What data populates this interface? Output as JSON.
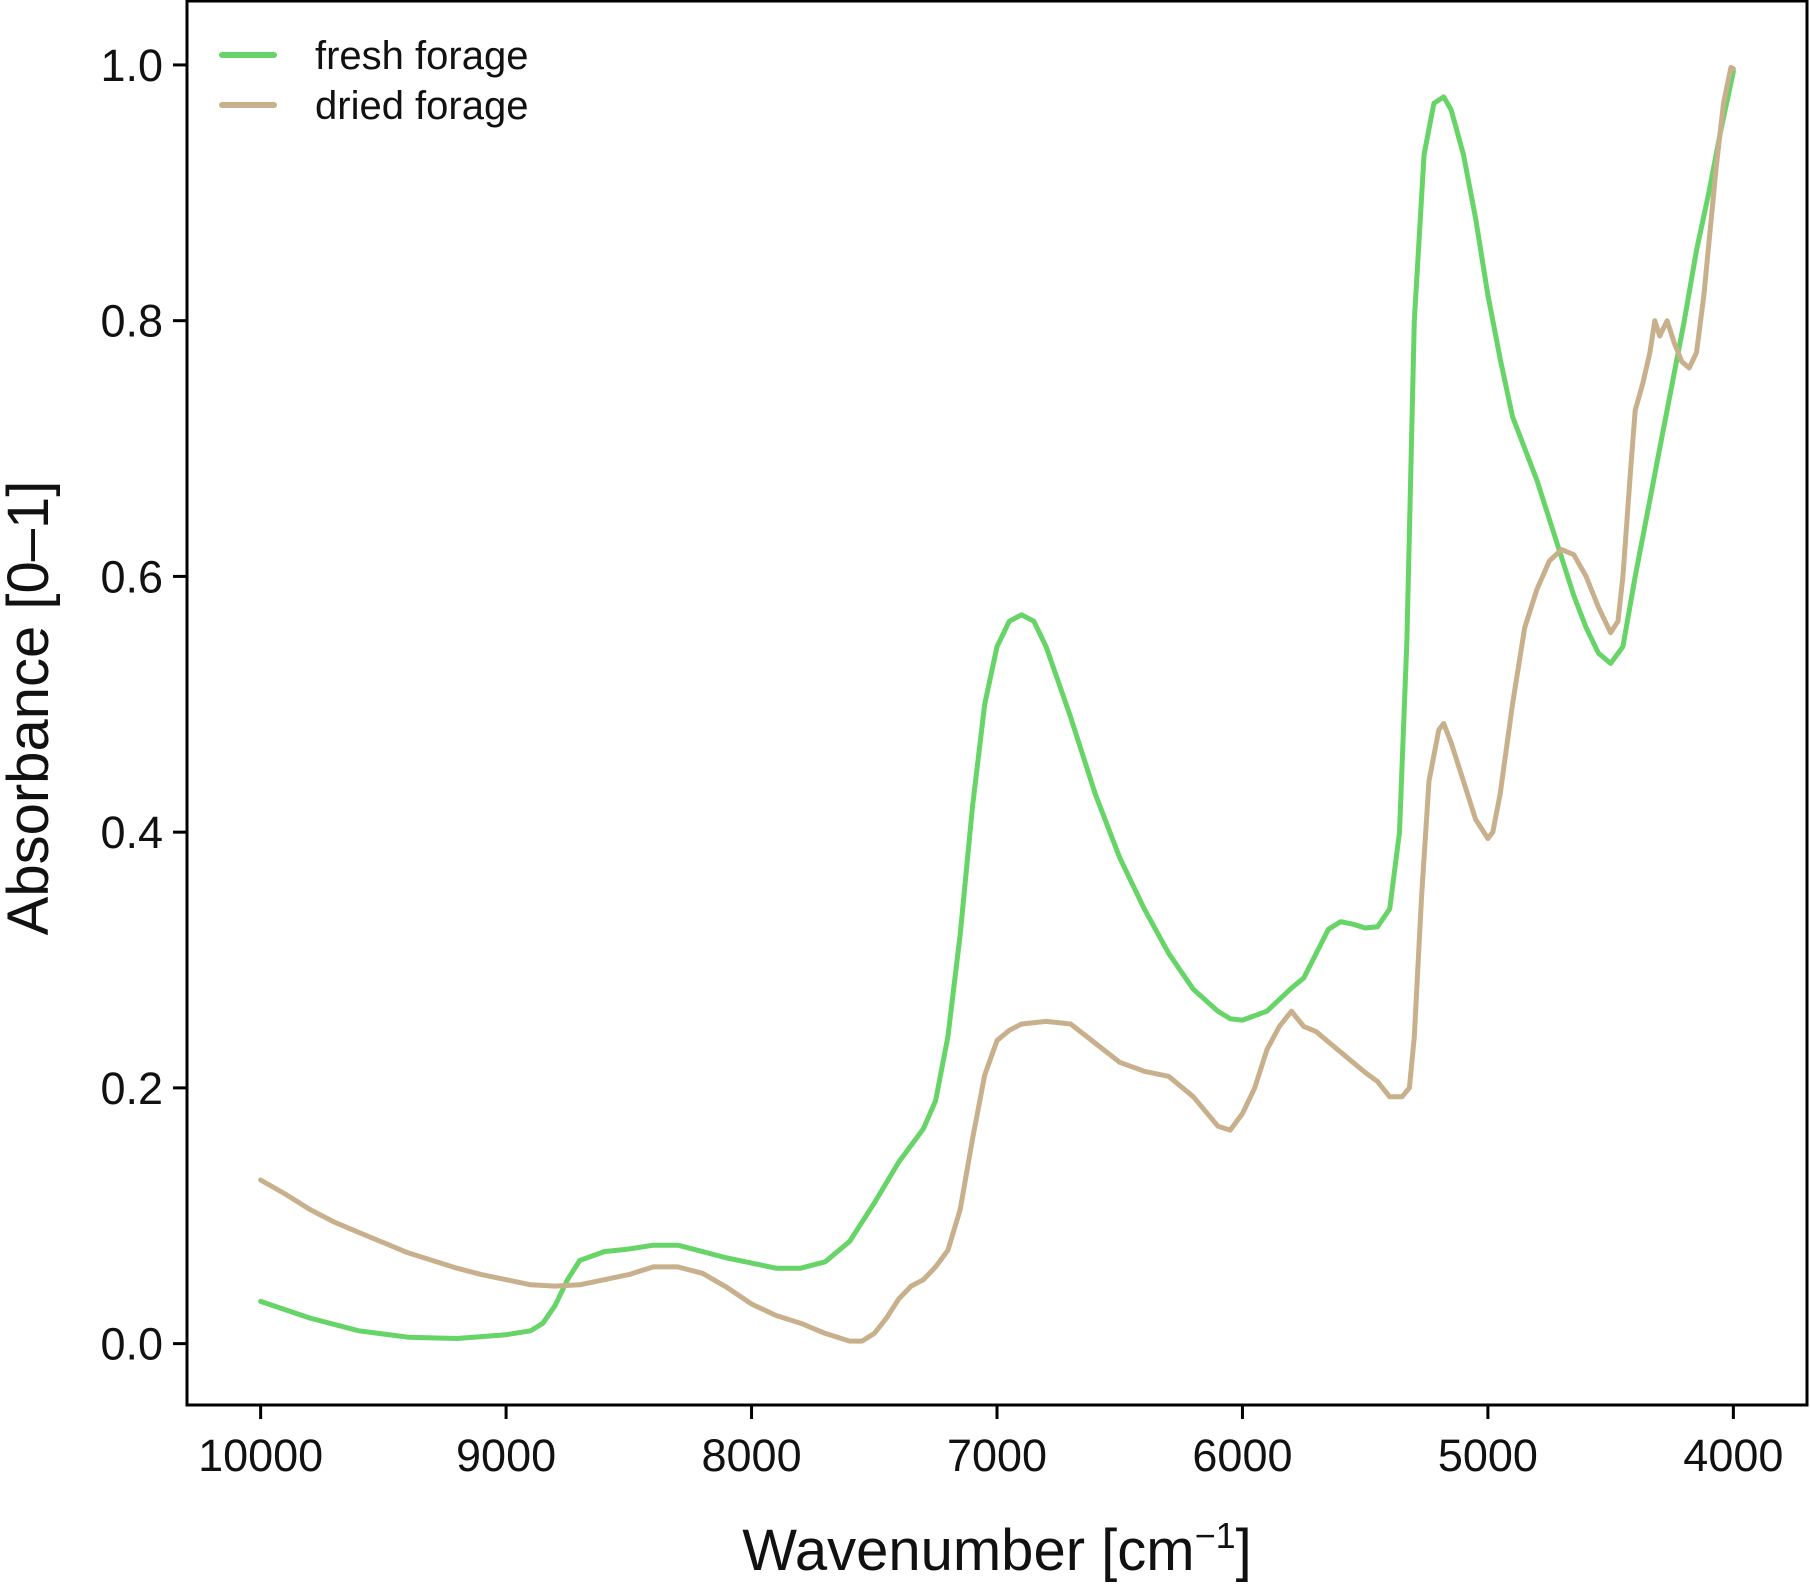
{
  "chart_data": {
    "type": "line",
    "title": "",
    "xlabel": "Wavenumber [cm",
    "xlabel_sup": "−1",
    "xlabel_close": "]",
    "ylabel": "Absorbance [0–1]",
    "xlim": [
      10300,
      3700
    ],
    "x_reversed": true,
    "ylim": [
      -0.048,
      1.05
    ],
    "xticks": [
      10000,
      9000,
      8000,
      7000,
      6000,
      5000,
      4000
    ],
    "xtick_labels": [
      "10000",
      "9000",
      "8000",
      "7000",
      "6000",
      "5000",
      "4000"
    ],
    "yticks": [
      0.0,
      0.2,
      0.4,
      0.6,
      0.8,
      1.0
    ],
    "ytick_labels": [
      "0.0",
      "0.2",
      "0.4",
      "0.6",
      "0.8",
      "1.0"
    ],
    "grid": false,
    "legend_position": "top-left",
    "series": [
      {
        "name": "fresh forage",
        "color": "#66d466",
        "points": [
          [
            10000,
            0.033
          ],
          [
            9800,
            0.02
          ],
          [
            9600,
            0.01
          ],
          [
            9400,
            0.005
          ],
          [
            9200,
            0.004
          ],
          [
            9000,
            0.007
          ],
          [
            8900,
            0.01
          ],
          [
            8850,
            0.016
          ],
          [
            8800,
            0.03
          ],
          [
            8750,
            0.05
          ],
          [
            8700,
            0.065
          ],
          [
            8600,
            0.072
          ],
          [
            8500,
            0.074
          ],
          [
            8400,
            0.077
          ],
          [
            8300,
            0.077
          ],
          [
            8200,
            0.072
          ],
          [
            8100,
            0.067
          ],
          [
            8000,
            0.063
          ],
          [
            7900,
            0.059
          ],
          [
            7800,
            0.059
          ],
          [
            7700,
            0.064
          ],
          [
            7600,
            0.08
          ],
          [
            7500,
            0.11
          ],
          [
            7400,
            0.142
          ],
          [
            7300,
            0.168
          ],
          [
            7250,
            0.19
          ],
          [
            7200,
            0.24
          ],
          [
            7150,
            0.32
          ],
          [
            7100,
            0.42
          ],
          [
            7050,
            0.5
          ],
          [
            7000,
            0.545
          ],
          [
            6950,
            0.565
          ],
          [
            6900,
            0.57
          ],
          [
            6850,
            0.565
          ],
          [
            6800,
            0.545
          ],
          [
            6700,
            0.49
          ],
          [
            6600,
            0.43
          ],
          [
            6500,
            0.38
          ],
          [
            6400,
            0.34
          ],
          [
            6300,
            0.305
          ],
          [
            6200,
            0.277
          ],
          [
            6100,
            0.26
          ],
          [
            6050,
            0.254
          ],
          [
            6000,
            0.253
          ],
          [
            5900,
            0.26
          ],
          [
            5800,
            0.278
          ],
          [
            5750,
            0.286
          ],
          [
            5700,
            0.305
          ],
          [
            5650,
            0.324
          ],
          [
            5600,
            0.33
          ],
          [
            5550,
            0.328
          ],
          [
            5500,
            0.325
          ],
          [
            5450,
            0.326
          ],
          [
            5400,
            0.34
          ],
          [
            5360,
            0.4
          ],
          [
            5330,
            0.55
          ],
          [
            5300,
            0.8
          ],
          [
            5260,
            0.93
          ],
          [
            5220,
            0.97
          ],
          [
            5180,
            0.975
          ],
          [
            5150,
            0.965
          ],
          [
            5100,
            0.93
          ],
          [
            5050,
            0.88
          ],
          [
            5000,
            0.82
          ],
          [
            4950,
            0.77
          ],
          [
            4900,
            0.725
          ],
          [
            4800,
            0.675
          ],
          [
            4700,
            0.615
          ],
          [
            4650,
            0.585
          ],
          [
            4600,
            0.56
          ],
          [
            4550,
            0.54
          ],
          [
            4500,
            0.532
          ],
          [
            4450,
            0.545
          ],
          [
            4400,
            0.6
          ],
          [
            4350,
            0.65
          ],
          [
            4300,
            0.7
          ],
          [
            4250,
            0.75
          ],
          [
            4200,
            0.8
          ],
          [
            4150,
            0.855
          ],
          [
            4100,
            0.9
          ],
          [
            4050,
            0.95
          ],
          [
            4000,
            0.995
          ]
        ]
      },
      {
        "name": "dried forage",
        "color": "#c8b08c",
        "points": [
          [
            10000,
            0.128
          ],
          [
            9900,
            0.117
          ],
          [
            9800,
            0.105
          ],
          [
            9700,
            0.095
          ],
          [
            9600,
            0.087
          ],
          [
            9500,
            0.079
          ],
          [
            9400,
            0.071
          ],
          [
            9300,
            0.065
          ],
          [
            9200,
            0.059
          ],
          [
            9100,
            0.054
          ],
          [
            9000,
            0.05
          ],
          [
            8900,
            0.046
          ],
          [
            8800,
            0.045
          ],
          [
            8700,
            0.046
          ],
          [
            8600,
            0.05
          ],
          [
            8500,
            0.054
          ],
          [
            8400,
            0.06
          ],
          [
            8300,
            0.06
          ],
          [
            8200,
            0.055
          ],
          [
            8100,
            0.044
          ],
          [
            8000,
            0.031
          ],
          [
            7900,
            0.022
          ],
          [
            7800,
            0.016
          ],
          [
            7700,
            0.008
          ],
          [
            7600,
            0.002
          ],
          [
            7550,
            0.002
          ],
          [
            7500,
            0.008
          ],
          [
            7450,
            0.02
          ],
          [
            7400,
            0.035
          ],
          [
            7350,
            0.045
          ],
          [
            7300,
            0.05
          ],
          [
            7250,
            0.06
          ],
          [
            7200,
            0.073
          ],
          [
            7150,
            0.105
          ],
          [
            7100,
            0.16
          ],
          [
            7050,
            0.21
          ],
          [
            7000,
            0.237
          ],
          [
            6950,
            0.245
          ],
          [
            6900,
            0.25
          ],
          [
            6800,
            0.252
          ],
          [
            6700,
            0.25
          ],
          [
            6600,
            0.235
          ],
          [
            6500,
            0.22
          ],
          [
            6400,
            0.213
          ],
          [
            6300,
            0.209
          ],
          [
            6200,
            0.193
          ],
          [
            6100,
            0.17
          ],
          [
            6050,
            0.167
          ],
          [
            6000,
            0.18
          ],
          [
            5950,
            0.2
          ],
          [
            5900,
            0.23
          ],
          [
            5850,
            0.248
          ],
          [
            5800,
            0.26
          ],
          [
            5780,
            0.255
          ],
          [
            5750,
            0.248
          ],
          [
            5700,
            0.244
          ],
          [
            5650,
            0.236
          ],
          [
            5600,
            0.228
          ],
          [
            5550,
            0.22
          ],
          [
            5500,
            0.212
          ],
          [
            5450,
            0.205
          ],
          [
            5400,
            0.193
          ],
          [
            5350,
            0.193
          ],
          [
            5320,
            0.2
          ],
          [
            5300,
            0.24
          ],
          [
            5270,
            0.35
          ],
          [
            5240,
            0.44
          ],
          [
            5200,
            0.48
          ],
          [
            5180,
            0.485
          ],
          [
            5150,
            0.47
          ],
          [
            5100,
            0.44
          ],
          [
            5050,
            0.41
          ],
          [
            5000,
            0.395
          ],
          [
            4980,
            0.4
          ],
          [
            4950,
            0.43
          ],
          [
            4900,
            0.5
          ],
          [
            4850,
            0.56
          ],
          [
            4800,
            0.59
          ],
          [
            4750,
            0.612
          ],
          [
            4700,
            0.621
          ],
          [
            4650,
            0.617
          ],
          [
            4600,
            0.6
          ],
          [
            4550,
            0.576
          ],
          [
            4500,
            0.556
          ],
          [
            4470,
            0.565
          ],
          [
            4450,
            0.6
          ],
          [
            4420,
            0.68
          ],
          [
            4400,
            0.73
          ],
          [
            4370,
            0.75
          ],
          [
            4340,
            0.775
          ],
          [
            4320,
            0.8
          ],
          [
            4300,
            0.788
          ],
          [
            4270,
            0.8
          ],
          [
            4240,
            0.782
          ],
          [
            4210,
            0.768
          ],
          [
            4180,
            0.763
          ],
          [
            4150,
            0.775
          ],
          [
            4120,
            0.82
          ],
          [
            4100,
            0.86
          ],
          [
            4070,
            0.92
          ],
          [
            4040,
            0.97
          ],
          [
            4010,
            0.998
          ],
          [
            4000,
            0.997
          ]
        ]
      }
    ]
  }
}
